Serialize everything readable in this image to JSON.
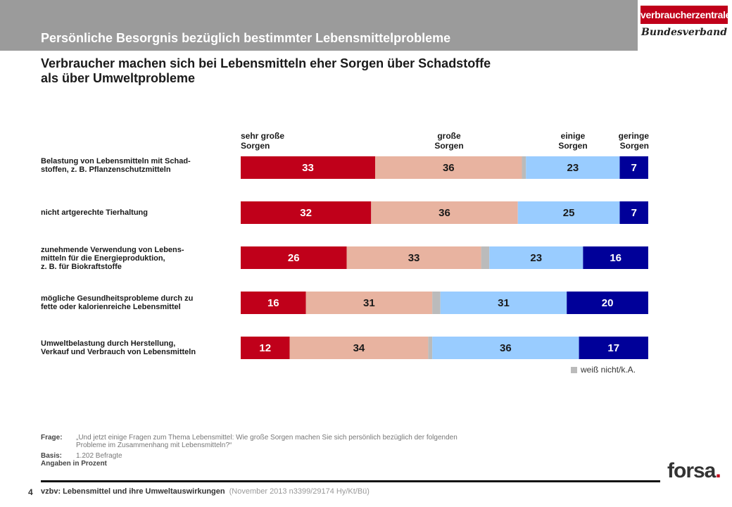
{
  "header": {
    "title": "Persönliche Besorgnis bezüglich bestimmter Lebensmittelprobleme",
    "logo_top": "verbraucherzentrale",
    "logo_bottom": "Bundesverband"
  },
  "subtitle": {
    "line1": "Verbraucher machen sich bei Lebensmitteln eher Sorgen über Schadstoffe",
    "line2": "als über Umweltprobleme"
  },
  "column_headers": [
    {
      "line1": "sehr große",
      "line2": "Sorgen"
    },
    {
      "line1": "große",
      "line2": "Sorgen"
    },
    {
      "line1": "einige",
      "line2": "Sorgen"
    },
    {
      "line1": "geringe",
      "line2": "Sorgen"
    }
  ],
  "row_labels": [
    {
      "line1": "Belastung von Lebensmitteln mit Schad-",
      "line2": "stoffen,  z. B.  Pflanzenschutzmitteln",
      "line3": ""
    },
    {
      "line1": "nicht artgerechte  Tierhaltung",
      "line2": "",
      "line3": ""
    },
    {
      "line1": "zunehmende Verwendung von Lebens-",
      "line2": "mitteln für die Energieproduktion,",
      "line3": "z. B. für Biokraftstoffe"
    },
    {
      "line1": "mögliche Gesundheitsprobleme  durch zu",
      "line2": "fette  oder kalorienreiche  Lebensmittel",
      "line3": ""
    },
    {
      "line1": "Umweltbelastung  durch Herstellung,",
      "line2": "Verkauf und Verbrauch  von Lebensmitteln",
      "line3": ""
    }
  ],
  "legend": {
    "label": "weiß nicht/k.A."
  },
  "notes": {
    "frage_key": "Frage:",
    "frage_line1": "„Und jetzt einige Fragen zum Thema Lebensmittel: Wie große Sorgen machen Sie sich persönlich bezüglich der folgenden",
    "frage_line2": "Probleme im Zusammenhang mit Lebensmitteln?“",
    "basis_key": "Basis:",
    "basis_val": "1.202 Befragte",
    "angaben": "Angaben in Prozent"
  },
  "footer": {
    "page": "4",
    "main": "vzbv: Lebensmittel und ihre Umweltauswirkungen",
    "sub": "(November 2013   n3399/29174  Hy/Kt/Bü)",
    "brand": "forsa",
    "brand_dot": "."
  },
  "colors": {
    "sehr_gross": "#c0001a",
    "gross": "#e8b3a0",
    "weiss_nicht": "#bbbbbb",
    "einige": "#99ccff",
    "gering": "#000099"
  },
  "chart_data": {
    "type": "bar",
    "orientation": "horizontal",
    "stacked": true,
    "percent_scale": true,
    "xlim": [
      0,
      100
    ],
    "categories": [
      "Belastung von Lebensmitteln mit Schadstoffen, z. B. Pflanzenschutzmitteln",
      "nicht artgerechte Tierhaltung",
      "zunehmende Verwendung von Lebensmitteln für die Energieproduktion, z. B. für Biokraftstoffe",
      "mögliche Gesundheitsprobleme durch zu fette oder kalorienreiche Lebensmittel",
      "Umweltbelastung durch Herstellung, Verkauf und Verbrauch von Lebensmitteln"
    ],
    "series": [
      {
        "name": "sehr große Sorgen",
        "values": [
          33,
          32,
          26,
          16,
          12
        ],
        "color": "#c0001a",
        "label_color": "#ffffff",
        "labeled": true
      },
      {
        "name": "große Sorgen",
        "values": [
          36,
          36,
          33,
          31,
          34
        ],
        "color": "#e8b3a0",
        "label_color": "#1a1a1a",
        "labeled": true
      },
      {
        "name": "weiß nicht/k.A.",
        "values": [
          1,
          0,
          2,
          2,
          1
        ],
        "color": "#bbbbbb",
        "label_color": "#1a1a1a",
        "labeled": false
      },
      {
        "name": "einige Sorgen",
        "values": [
          23,
          25,
          23,
          31,
          36
        ],
        "color": "#99ccff",
        "label_color": "#1a1a1a",
        "labeled": true
      },
      {
        "name": "geringe Sorgen",
        "values": [
          7,
          7,
          16,
          20,
          17
        ],
        "color": "#000099",
        "label_color": "#ffffff",
        "labeled": true
      }
    ]
  }
}
